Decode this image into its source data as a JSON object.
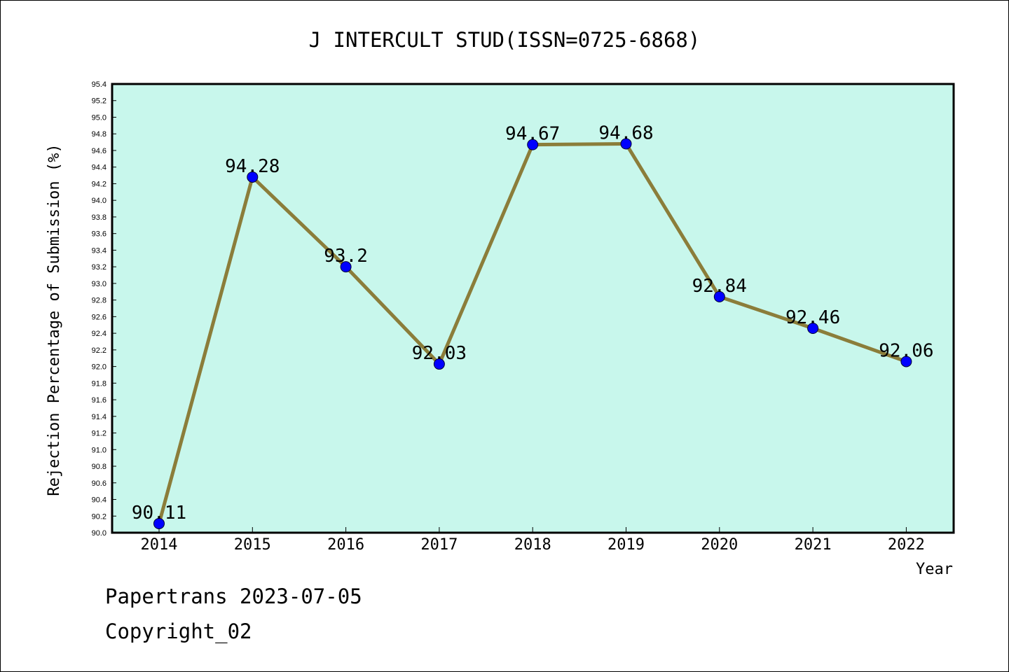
{
  "chart_data": {
    "type": "line",
    "title": "J INTERCULT STUD(ISSN=0725-6868)",
    "xlabel": "Year",
    "ylabel": "Rejection Percentage of Submission (%)",
    "categories": [
      "2014",
      "2015",
      "2016",
      "2017",
      "2018",
      "2019",
      "2020",
      "2021",
      "2022"
    ],
    "values": [
      90.11,
      94.28,
      93.2,
      92.03,
      94.67,
      94.68,
      92.84,
      92.46,
      92.06
    ],
    "data_labels": [
      "90.11",
      "94.28",
      "93.2",
      "92.03",
      "94.67",
      "94.68",
      "92.84",
      "92.46",
      "92.06"
    ],
    "ylim": [
      90.0,
      95.4
    ],
    "yticks": [
      "90.0",
      "90.2",
      "90.4",
      "90.6",
      "90.8",
      "91.0",
      "91.2",
      "91.4",
      "91.6",
      "91.8",
      "92.0",
      "92.2",
      "92.4",
      "92.6",
      "92.8",
      "93.0",
      "93.2",
      "93.4",
      "93.6",
      "93.8",
      "94.0",
      "94.2",
      "94.4",
      "94.6",
      "94.8",
      "95.0",
      "95.2",
      "95.4"
    ],
    "grid": false,
    "colors": {
      "plot_background": "#c8f7ec",
      "line": "#8b7d3a",
      "marker": "#0000ff"
    }
  },
  "footer": {
    "line1": "Papertrans 2023-07-05",
    "line2": "Copyright_02"
  }
}
